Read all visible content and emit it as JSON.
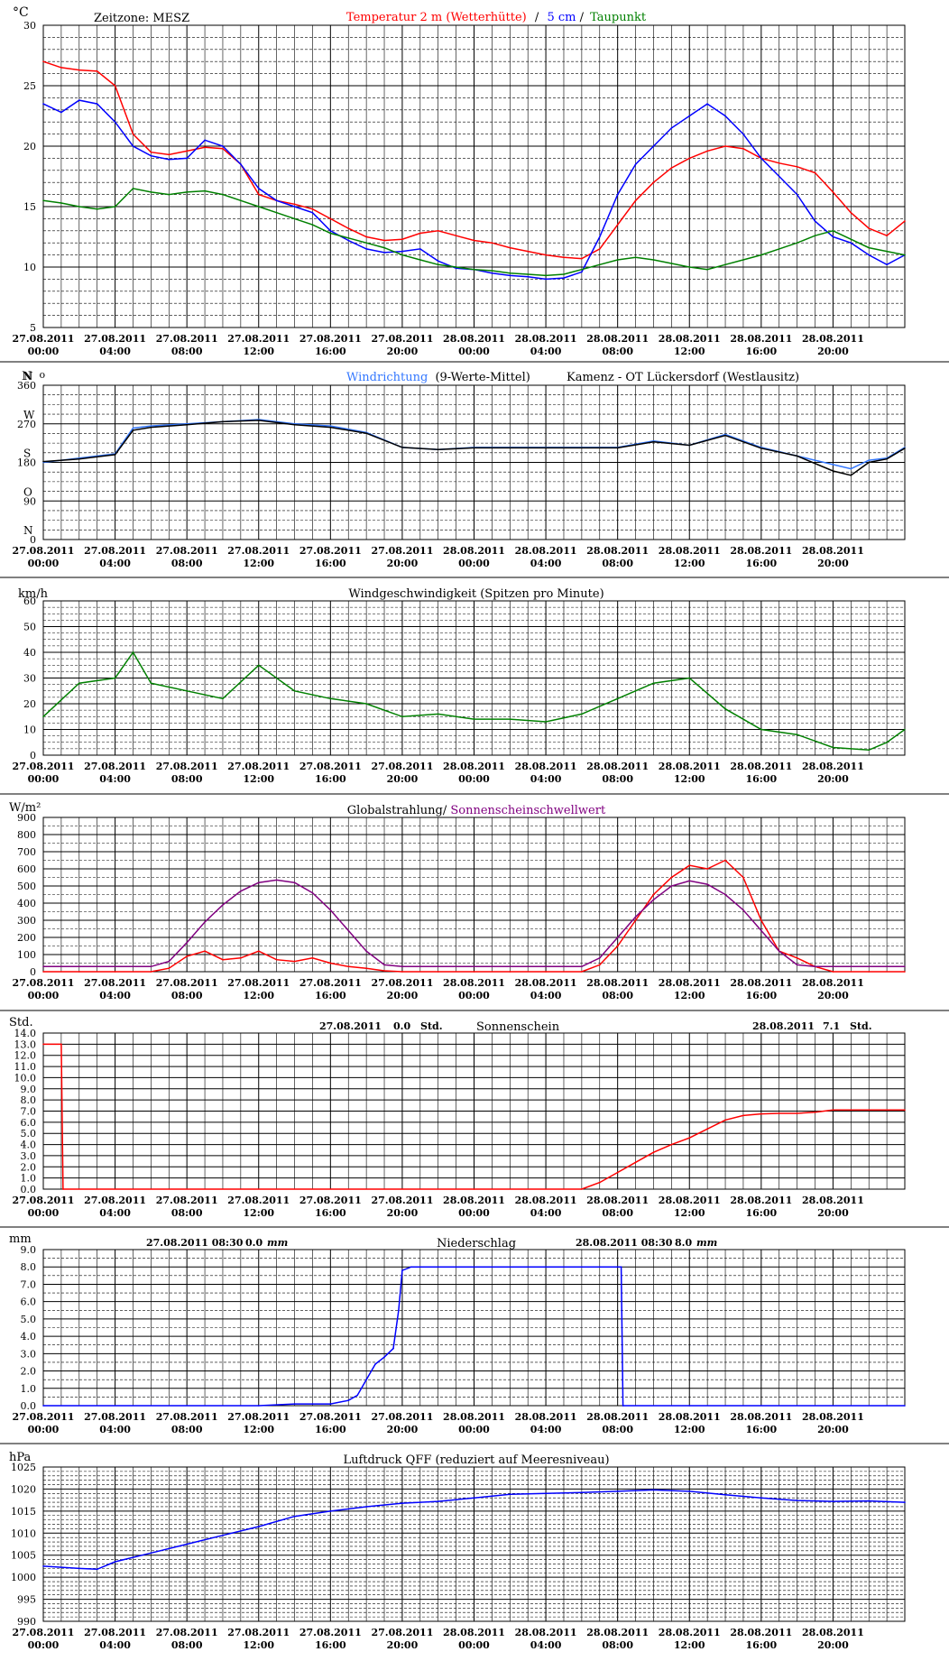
{
  "x_ticks": [
    {
      "date": "27.08.2011",
      "time": "00:00"
    },
    {
      "date": "27.08.2011",
      "time": "04:00"
    },
    {
      "date": "27.08.2011",
      "time": "08:00"
    },
    {
      "date": "27.08.2011",
      "time": "12:00"
    },
    {
      "date": "27.08.2011",
      "time": "16:00"
    },
    {
      "date": "27.08.2011",
      "time": "20:00"
    },
    {
      "date": "28.08.2011",
      "time": "00:00"
    },
    {
      "date": "28.08.2011",
      "time": "04:00"
    },
    {
      "date": "28.08.2011",
      "time": "08:00"
    },
    {
      "date": "28.08.2011",
      "time": "12:00"
    },
    {
      "date": "28.08.2011",
      "time": "16:00"
    },
    {
      "date": "28.08.2011",
      "time": "20:00"
    }
  ],
  "colors": {
    "red": "#ff0000",
    "blue": "#0000ff",
    "lightblue": "#3377ff",
    "green": "#008000",
    "purple": "#800080",
    "black": "#000000",
    "grid": "#000000"
  },
  "header": {
    "temp_unit": "°C",
    "zeitzone": "Zeitzone: MESZ",
    "temp_legend_red": "Temperatur 2 m (Wetterhütte)",
    "temp_legend_sep": "/",
    "temp_legend_blue": "5 cm",
    "temp_legend_sep2": "/",
    "temp_legend_green": "Taupunkt",
    "wind_dir_unit": "N",
    "wind_dir_unit_deg": "o",
    "wind_dir_legend_blue": "Windrichtung",
    "wind_dir_legend_rest": "(9-Werte-Mittel)",
    "station": "Kamenz - OT Lückersdorf (Westlausitz)",
    "wind_speed_unit": "km/h",
    "wind_speed_title": "Windgeschwindigkeit (Spitzen pro Minute)",
    "rad_unit": "W/m²",
    "rad_title_red": "Globalstrahlung/",
    "rad_title_purple": "Sonnenscheinschwellwert",
    "sun_unit": "Std.",
    "sun_title": "Sonnenschein",
    "sun_day1_date": "27.08.2011",
    "sun_day1_value": "0.0",
    "sun_day1_unit": "Std.",
    "sun_day2_date": "28.08.2011",
    "sun_day2_value": "7.1",
    "sun_day2_unit": "Std.",
    "rain_unit": "mm",
    "rain_title": "Niederschlag",
    "rain_day1_date": "27.08.2011 08:30",
    "rain_day1_value": "0.0",
    "rain_day1_unit": "mm",
    "rain_day2_date": "28.08.2011 08:30",
    "rain_day2_value": "8.0",
    "rain_day2_unit": "mm",
    "pressure_unit": "hPa",
    "pressure_title": "Luftdruck QFF (reduziert auf Meeresniveau)"
  },
  "chart_data": [
    {
      "type": "line",
      "title": "Temperatur 2 m (Wetterhütte) / 5 cm / Taupunkt",
      "ylabel": "°C",
      "ylim": [
        5,
        30
      ],
      "yticks": [
        5,
        10,
        15,
        20,
        25,
        30
      ],
      "x_hours": [
        0,
        1,
        2,
        3,
        4,
        5,
        6,
        7,
        8,
        9,
        10,
        11,
        12,
        13,
        14,
        15,
        16,
        17,
        18,
        19,
        20,
        21,
        22,
        23,
        24,
        25,
        26,
        27,
        28,
        29,
        30,
        31,
        32,
        33,
        34,
        35,
        36,
        37,
        38,
        39,
        40,
        41,
        42,
        43,
        44,
        45,
        46,
        47,
        48
      ],
      "series": [
        {
          "name": "Temperatur 2 m (Wetterhütte)",
          "color": "#ff0000",
          "values": [
            27.0,
            26.5,
            26.3,
            26.2,
            25.0,
            21.0,
            19.5,
            19.3,
            19.6,
            19.9,
            19.8,
            18.5,
            16.0,
            15.5,
            15.2,
            14.8,
            14.0,
            13.2,
            12.5,
            12.2,
            12.3,
            12.8,
            13.0,
            12.6,
            12.2,
            12.0,
            11.6,
            11.3,
            11.0,
            10.8,
            10.7,
            11.5,
            13.5,
            15.5,
            17.0,
            18.2,
            19.0,
            19.6,
            20.0,
            19.8,
            19.0,
            18.6,
            18.3,
            17.8,
            16.2,
            14.5,
            13.2,
            12.6,
            13.8
          ]
        },
        {
          "name": "5 cm",
          "color": "#0000ff",
          "values": [
            23.5,
            22.8,
            23.8,
            23.5,
            22.0,
            20.0,
            19.2,
            18.9,
            19.0,
            20.5,
            20.0,
            18.5,
            16.5,
            15.5,
            15.0,
            14.5,
            13.0,
            12.2,
            11.5,
            11.2,
            11.3,
            11.5,
            10.5,
            9.9,
            9.8,
            9.5,
            9.3,
            9.2,
            9.0,
            9.1,
            9.6,
            12.5,
            16.0,
            18.5,
            20.0,
            21.5,
            22.5,
            23.5,
            22.5,
            21.0,
            19.0,
            17.5,
            16.0,
            13.8,
            12.5,
            12.0,
            11.0,
            10.2,
            11.0
          ]
        },
        {
          "name": "Taupunkt",
          "color": "#008000",
          "values": [
            15.5,
            15.3,
            15.0,
            14.8,
            15.0,
            16.5,
            16.2,
            16.0,
            16.2,
            16.3,
            16.0,
            15.5,
            15.0,
            14.5,
            14.0,
            13.5,
            12.8,
            12.4,
            12.0,
            11.6,
            11.0,
            10.6,
            10.2,
            10.0,
            9.8,
            9.7,
            9.5,
            9.4,
            9.3,
            9.4,
            9.8,
            10.2,
            10.6,
            10.8,
            10.6,
            10.3,
            10.0,
            9.8,
            10.2,
            10.6,
            11.0,
            11.5,
            12.0,
            12.6,
            13.0,
            12.3,
            11.6,
            11.3,
            11.0
          ]
        }
      ]
    },
    {
      "type": "line",
      "title": "Windrichtung (9-Werte-Mittel)",
      "ylabel": "N o",
      "ylim": [
        0,
        360
      ],
      "yticks": [
        0,
        90,
        180,
        270,
        360
      ],
      "ytick_letters": [
        "N",
        "O",
        "S",
        "W",
        "N"
      ],
      "x_hours": [
        0,
        2,
        4,
        5,
        6,
        8,
        10,
        12,
        14,
        16,
        18,
        20,
        22,
        24,
        26,
        28,
        30,
        32,
        34,
        36,
        38,
        40,
        42,
        44,
        45,
        46,
        47,
        48
      ],
      "series": [
        {
          "name": "Windrichtung",
          "color": "#3377ff",
          "values": [
            180,
            190,
            200,
            260,
            265,
            270,
            275,
            280,
            270,
            265,
            250,
            215,
            210,
            215,
            215,
            215,
            215,
            215,
            230,
            220,
            245,
            215,
            195,
            175,
            165,
            185,
            190,
            215
          ]
        },
        {
          "name": "9-Werte-Mittel",
          "color": "#000000",
          "values": [
            182,
            188,
            198,
            255,
            262,
            268,
            275,
            278,
            268,
            262,
            248,
            215,
            210,
            214,
            214,
            214,
            214,
            214,
            228,
            220,
            243,
            213,
            195,
            160,
            150,
            180,
            188,
            213
          ]
        }
      ]
    },
    {
      "type": "line",
      "title": "Windgeschwindigkeit (Spitzen pro Minute)",
      "ylabel": "km/h",
      "ylim": [
        0,
        60
      ],
      "yticks": [
        0,
        10,
        20,
        30,
        40,
        50,
        60
      ],
      "x_hours": [
        0,
        2,
        4,
        5,
        6,
        8,
        10,
        12,
        14,
        16,
        18,
        20,
        22,
        24,
        26,
        28,
        30,
        32,
        34,
        36,
        38,
        40,
        42,
        44,
        46,
        47,
        48
      ],
      "series": [
        {
          "name": "Windgeschwindigkeit",
          "color": "#008000",
          "values": [
            15,
            28,
            30,
            40,
            28,
            25,
            22,
            35,
            25,
            22,
            20,
            15,
            16,
            14,
            14,
            13,
            16,
            22,
            28,
            30,
            18,
            10,
            8,
            3,
            2,
            5,
            10
          ]
        }
      ]
    },
    {
      "type": "line",
      "title": "Globalstrahlung/ Sonnenscheinschwellwert",
      "ylabel": "W/m²",
      "ylim": [
        0,
        900
      ],
      "yticks": [
        0,
        100,
        200,
        300,
        400,
        500,
        600,
        700,
        800,
        900
      ],
      "x_hours": [
        0,
        2,
        4,
        6,
        7,
        8,
        9,
        10,
        11,
        12,
        13,
        14,
        15,
        16,
        17,
        18,
        19,
        20,
        22,
        24,
        26,
        28,
        30,
        31,
        32,
        33,
        34,
        35,
        36,
        37,
        38,
        39,
        40,
        41,
        42,
        43,
        44,
        46,
        48
      ],
      "series": [
        {
          "name": "Globalstrahlung",
          "color": "#ff0000",
          "values": [
            0,
            0,
            0,
            0,
            20,
            90,
            120,
            70,
            80,
            120,
            70,
            60,
            80,
            50,
            30,
            20,
            5,
            0,
            0,
            0,
            0,
            0,
            0,
            40,
            150,
            300,
            450,
            550,
            620,
            600,
            650,
            550,
            300,
            120,
            80,
            30,
            0,
            0,
            0
          ]
        },
        {
          "name": "Sonnenscheinschwellwert",
          "color": "#800080",
          "values": [
            30,
            30,
            30,
            30,
            60,
            170,
            290,
            390,
            470,
            520,
            535,
            520,
            460,
            360,
            240,
            120,
            40,
            30,
            30,
            30,
            30,
            30,
            30,
            80,
            200,
            320,
            420,
            500,
            530,
            510,
            450,
            360,
            240,
            120,
            40,
            30,
            30,
            30,
            30
          ]
        }
      ]
    },
    {
      "type": "line",
      "title": "Sonnenschein",
      "ylabel": "Std.",
      "ylim": [
        0,
        14
      ],
      "yticks": [
        0,
        1,
        2,
        3,
        4,
        5,
        6,
        7,
        8,
        9,
        10,
        11,
        12,
        13,
        14
      ],
      "x_hours": [
        0,
        1,
        1.1,
        24,
        30,
        31,
        32,
        33,
        34,
        35,
        36,
        37,
        38,
        39,
        40,
        41,
        42,
        43,
        44,
        46,
        48
      ],
      "series": [
        {
          "name": "Sonnenschein",
          "color": "#ff0000",
          "values": [
            13,
            13,
            0,
            0,
            0,
            0.6,
            1.5,
            2.4,
            3.3,
            4.0,
            4.6,
            5.4,
            6.2,
            6.6,
            6.75,
            6.8,
            6.8,
            6.9,
            7.1,
            7.1,
            7.1
          ]
        }
      ]
    },
    {
      "type": "line",
      "title": "Niederschlag",
      "ylabel": "mm",
      "ylim": [
        0,
        9
      ],
      "yticks": [
        0,
        1,
        2,
        3,
        4,
        5,
        6,
        7,
        8,
        9
      ],
      "x_hours": [
        0,
        12,
        14,
        15,
        16,
        17,
        17.5,
        18,
        18.5,
        19,
        19.5,
        19.8,
        20,
        20.5,
        21,
        24,
        30,
        32.2,
        32.3,
        36,
        48
      ],
      "series": [
        {
          "name": "Niederschlag",
          "color": "#0000ff",
          "values": [
            0,
            0,
            0.1,
            0.1,
            0.1,
            0.3,
            0.6,
            1.5,
            2.4,
            2.8,
            3.3,
            5.5,
            7.8,
            8.0,
            8.0,
            8.0,
            8.0,
            8.0,
            0,
            0,
            0
          ]
        }
      ]
    },
    {
      "type": "line",
      "title": "Luftdruck QFF (reduziert auf Meeresniveau)",
      "ylabel": "hPa",
      "ylim": [
        990,
        1025
      ],
      "yticks": [
        990,
        995,
        1000,
        1005,
        1010,
        1015,
        1020,
        1025
      ],
      "x_hours": [
        0,
        2,
        3,
        4,
        6,
        8,
        10,
        12,
        14,
        16,
        18,
        20,
        22,
        24,
        26,
        28,
        30,
        32,
        34,
        36,
        38,
        40,
        42,
        44,
        46,
        48
      ],
      "series": [
        {
          "name": "Luftdruck",
          "color": "#0000ff",
          "values": [
            1002.5,
            1002,
            1001.8,
            1003.5,
            1005.5,
            1007.5,
            1009.5,
            1011.5,
            1013.8,
            1015,
            1016,
            1016.8,
            1017.2,
            1018,
            1018.8,
            1019,
            1019.2,
            1019.5,
            1019.8,
            1019.5,
            1018.7,
            1018,
            1017.4,
            1017.2,
            1017.3,
            1017
          ]
        }
      ]
    }
  ]
}
